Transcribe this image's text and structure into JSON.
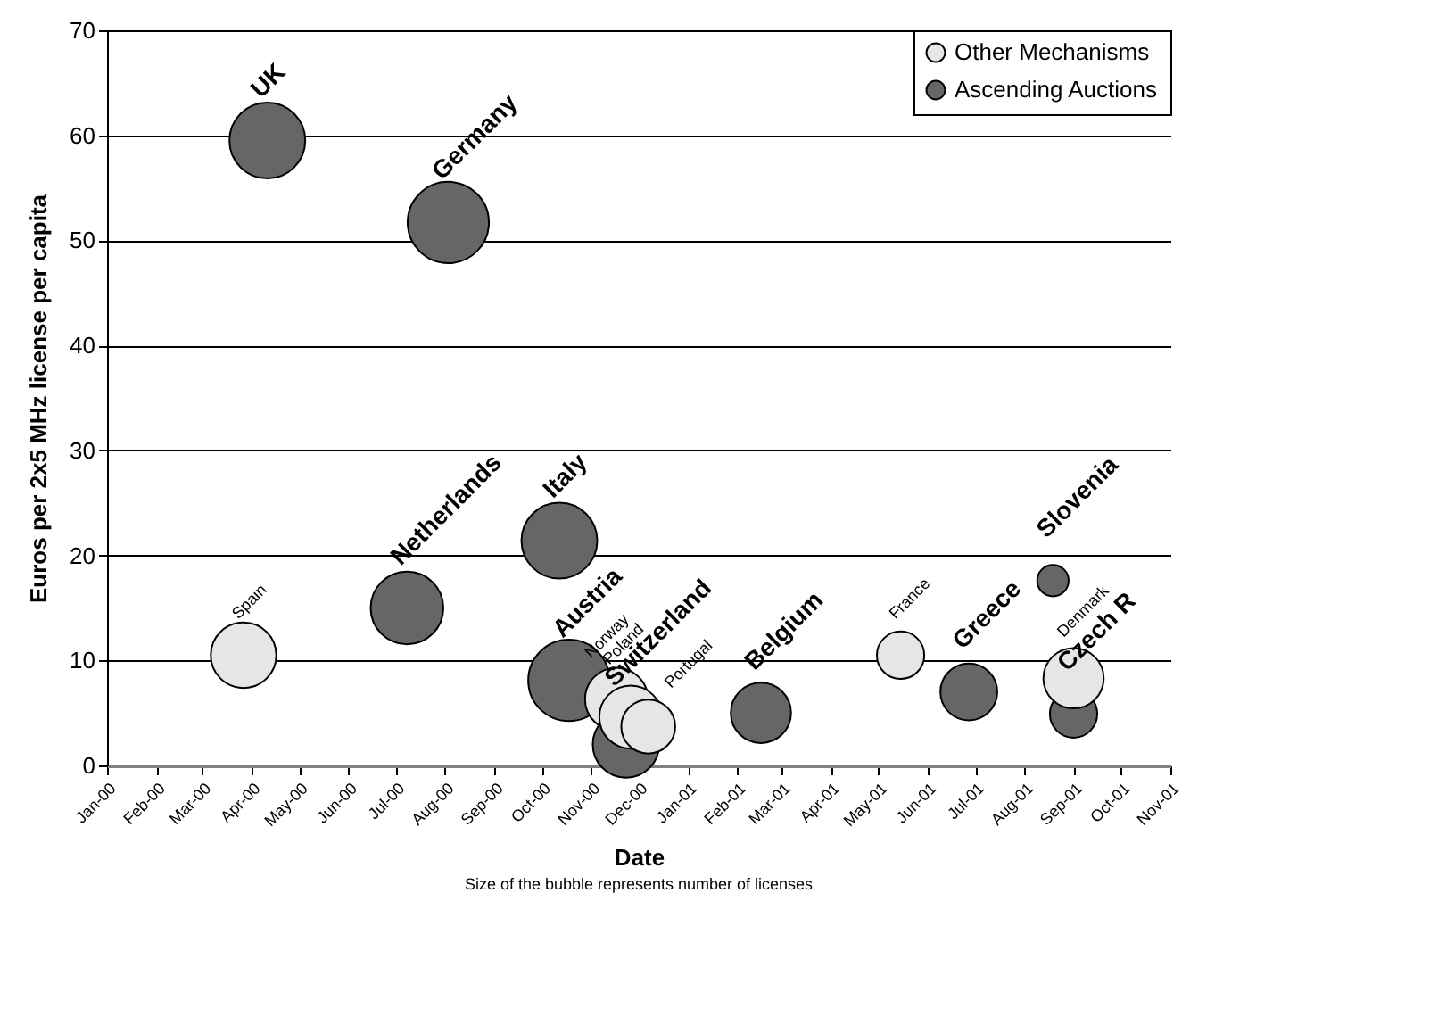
{
  "chart_data": {
    "type": "bubble",
    "xlabel": "Date",
    "ylabel": "Euros per 2x5 MHz license per capita",
    "annotations": [
      "Size of the bubble represents number of licenses"
    ],
    "xlim": [
      "2000-01-01",
      "2001-11-01"
    ],
    "xticks": [
      {
        "value": "2000-01-01",
        "label": "Jan-00"
      },
      {
        "value": "2000-02-01",
        "label": "Feb-00"
      },
      {
        "value": "2000-03-01",
        "label": "Mar-00"
      },
      {
        "value": "2000-04-01",
        "label": "Apr-00"
      },
      {
        "value": "2000-05-01",
        "label": "May-00"
      },
      {
        "value": "2000-06-01",
        "label": "Jun-00"
      },
      {
        "value": "2000-07-01",
        "label": "Jul-00"
      },
      {
        "value": "2000-08-01",
        "label": "Aug-00"
      },
      {
        "value": "2000-09-01",
        "label": "Sep-00"
      },
      {
        "value": "2000-10-01",
        "label": "Oct-00"
      },
      {
        "value": "2000-11-01",
        "label": "Nov-00"
      },
      {
        "value": "2000-12-01",
        "label": "Dec-00"
      },
      {
        "value": "2001-01-01",
        "label": "Jan-01"
      },
      {
        "value": "2001-02-01",
        "label": "Feb-01"
      },
      {
        "value": "2001-03-01",
        "label": "Mar-01"
      },
      {
        "value": "2001-04-01",
        "label": "Apr-01"
      },
      {
        "value": "2001-05-01",
        "label": "May-01"
      },
      {
        "value": "2001-06-01",
        "label": "Jun-01"
      },
      {
        "value": "2001-07-01",
        "label": "Jul-01"
      },
      {
        "value": "2001-08-01",
        "label": "Aug-01"
      },
      {
        "value": "2001-09-01",
        "label": "Sep-01"
      },
      {
        "value": "2001-10-01",
        "label": "Oct-01"
      },
      {
        "value": "2001-11-01",
        "label": "Nov-01"
      }
    ],
    "ylim": [
      0,
      70
    ],
    "yticks": [
      0,
      10,
      20,
      30,
      40,
      50,
      60,
      70
    ],
    "grid": "y",
    "legend": "top right",
    "series": [
      {
        "name": "Other Mechanisms",
        "color": "#e6e6e6",
        "x": [
          "2000-03-27",
          "2000-11-17",
          "2000-11-26",
          "2000-12-07",
          "2001-05-15",
          "2001-09-01"
        ],
        "values": [
          10.5,
          6.3,
          4.6,
          3.7,
          10.5,
          8.3
        ],
        "sizes": [
          0.65,
          0.6,
          0.6,
          0.44,
          0.34,
          0.55
        ],
        "value_labels": [
          "Spain",
          "Norway",
          "Poland",
          "Portugal",
          "France",
          "Denmark"
        ]
      },
      {
        "name": "Ascending Auctions",
        "color": "#666666",
        "x": [
          "2000-04-11",
          "2000-08-03",
          "2000-07-08",
          "2000-10-12",
          "2000-10-18",
          "2000-11-23",
          "2001-02-16",
          "2001-06-27",
          "2001-08-19",
          "2001-09-01"
        ],
        "values": [
          59.5,
          51.7,
          15.0,
          21.4,
          8.1,
          2.0,
          5.0,
          7.0,
          17.6,
          4.9
        ],
        "sizes": [
          0.87,
          1,
          0.8,
          0.87,
          1,
          0.67,
          0.55,
          0.49,
          0.15,
          0.34
        ],
        "value_labels": [
          "UK",
          "Germany",
          "Netherlands",
          "Italy",
          "Austria",
          "Switzerland",
          "Belgium",
          "Greece",
          "Slovenia",
          "Czech R"
        ]
      }
    ]
  }
}
